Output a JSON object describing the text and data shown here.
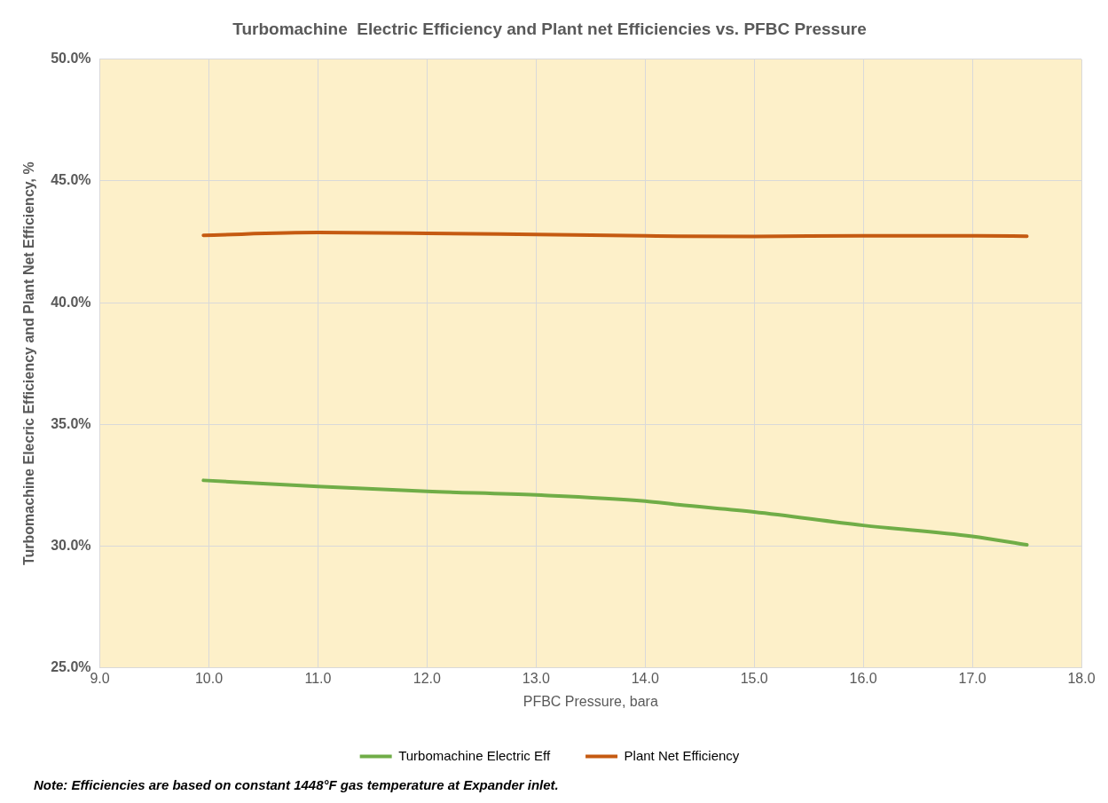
{
  "chart_data": {
    "type": "line",
    "title": "Turbomachine  Electric Efficiency and Plant net Efficiencies vs. PFBC Pressure",
    "xlabel": "PFBC Pressure, bara",
    "ylabel": "Turbomachine Elecric Efficiency and Plant Net Efficiency, %",
    "xlim": [
      9,
      18
    ],
    "xticks": [
      {
        "value": 9,
        "label": "9.0"
      },
      {
        "value": 10,
        "label": "10.0"
      },
      {
        "value": 11,
        "label": "11.0"
      },
      {
        "value": 12,
        "label": "12.0"
      },
      {
        "value": 13,
        "label": "13.0"
      },
      {
        "value": 14,
        "label": "14.0"
      },
      {
        "value": 15,
        "label": "15.0"
      },
      {
        "value": 16,
        "label": "16.0"
      },
      {
        "value": 17,
        "label": "17.0"
      },
      {
        "value": 18,
        "label": "18.0"
      }
    ],
    "ylim": [
      25,
      50
    ],
    "yticks": [
      {
        "value": 25,
        "label": "25.0%"
      },
      {
        "value": 30,
        "label": "30.0%"
      },
      {
        "value": 35,
        "label": "35.0%"
      },
      {
        "value": 40,
        "label": "40.0%"
      },
      {
        "value": 45,
        "label": "45.0%"
      },
      {
        "value": 50,
        "label": "50.0%"
      }
    ],
    "x": [
      9.95,
      11,
      12,
      13,
      14,
      14.3,
      15,
      16,
      17,
      17.5
    ],
    "series": [
      {
        "name": "Turbomachine Electric Eff",
        "color": "#70ad47",
        "values": [
          32.7,
          32.45,
          32.25,
          32.1,
          31.85,
          31.7,
          31.4,
          30.85,
          30.4,
          30.05
        ]
      },
      {
        "name": "Plant Net Efficiency",
        "color": "#c55a11",
        "values": [
          42.77,
          42.88,
          42.85,
          42.8,
          42.75,
          42.73,
          42.72,
          42.75,
          42.75,
          42.73
        ]
      }
    ],
    "grid": true,
    "legend": "bottom",
    "marker": "none",
    "line_style": "solid",
    "annotations": [
      "Note: Efficiencies are based on constant 1448°F gas temperature at Expander inlet."
    ]
  }
}
